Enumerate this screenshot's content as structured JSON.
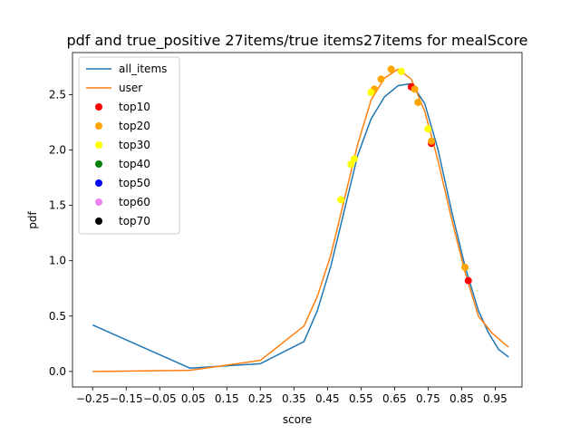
{
  "chart_data": {
    "type": "line",
    "title": "pdf and true_positive 27items/true items27items for mealScore",
    "xlabel": "score",
    "ylabel": "pdf",
    "xlim": [
      -0.31,
      1.03
    ],
    "ylim": [
      -0.14,
      2.88
    ],
    "grid": false,
    "legend_position": "top-left",
    "x_ticks": [
      -0.25,
      -0.15,
      -0.05,
      0.05,
      0.15,
      0.25,
      0.35,
      0.45,
      0.55,
      0.65,
      0.75,
      0.85,
      0.95
    ],
    "x_tick_labels": [
      "−0.25",
      "−0.15",
      "−0.05",
      "0.05",
      "0.15",
      "0.25",
      "0.35",
      "0.45",
      "0.55",
      "0.65",
      "0.75",
      "0.85",
      "0.95"
    ],
    "y_ticks": [
      0.0,
      0.5,
      1.0,
      1.5,
      2.0,
      2.5
    ],
    "y_tick_labels": [
      "0.0",
      "0.5",
      "1.0",
      "1.5",
      "2.0",
      "2.5"
    ],
    "series": [
      {
        "name": "all_items",
        "kind": "line",
        "color": "#1f77b4",
        "points": [
          [
            -0.25,
            0.42
          ],
          [
            0.04,
            0.03
          ],
          [
            0.25,
            0.07
          ],
          [
            0.38,
            0.27
          ],
          [
            0.42,
            0.55
          ],
          [
            0.46,
            0.95
          ],
          [
            0.5,
            1.45
          ],
          [
            0.54,
            1.95
          ],
          [
            0.58,
            2.28
          ],
          [
            0.62,
            2.48
          ],
          [
            0.66,
            2.58
          ],
          [
            0.7,
            2.6
          ],
          [
            0.74,
            2.42
          ],
          [
            0.78,
            2.0
          ],
          [
            0.82,
            1.45
          ],
          [
            0.86,
            0.95
          ],
          [
            0.9,
            0.55
          ],
          [
            0.93,
            0.35
          ],
          [
            0.96,
            0.2
          ],
          [
            0.99,
            0.13
          ]
        ]
      },
      {
        "name": "user",
        "kind": "line",
        "color": "#ff7f0e",
        "points": [
          [
            -0.25,
            0.0
          ],
          [
            0.04,
            0.01
          ],
          [
            0.18,
            0.07
          ],
          [
            0.25,
            0.1
          ],
          [
            0.38,
            0.41
          ],
          [
            0.42,
            0.68
          ],
          [
            0.46,
            1.05
          ],
          [
            0.5,
            1.55
          ],
          [
            0.54,
            2.05
          ],
          [
            0.58,
            2.45
          ],
          [
            0.62,
            2.65
          ],
          [
            0.66,
            2.73
          ],
          [
            0.7,
            2.64
          ],
          [
            0.74,
            2.35
          ],
          [
            0.78,
            1.9
          ],
          [
            0.82,
            1.38
          ],
          [
            0.86,
            0.9
          ],
          [
            0.9,
            0.5
          ],
          [
            0.94,
            0.35
          ],
          [
            0.97,
            0.27
          ],
          [
            0.99,
            0.22
          ]
        ]
      },
      {
        "name": "top10",
        "kind": "scatter",
        "color": "#ff0000",
        "points": [
          [
            0.7,
            2.57
          ],
          [
            0.76,
            2.06
          ],
          [
            0.87,
            0.82
          ]
        ]
      },
      {
        "name": "top20",
        "kind": "scatter",
        "color": "#ffa500",
        "points": [
          [
            0.59,
            2.55
          ],
          [
            0.61,
            2.64
          ],
          [
            0.64,
            2.73
          ],
          [
            0.71,
            2.55
          ],
          [
            0.72,
            2.43
          ],
          [
            0.76,
            2.08
          ],
          [
            0.86,
            0.94
          ]
        ]
      },
      {
        "name": "top30",
        "kind": "scatter",
        "color": "#ffff00",
        "points": [
          [
            0.49,
            1.55
          ],
          [
            0.52,
            1.87
          ],
          [
            0.53,
            1.92
          ],
          [
            0.58,
            2.52
          ],
          [
            0.67,
            2.71
          ],
          [
            0.75,
            2.19
          ]
        ]
      },
      {
        "name": "top40",
        "kind": "scatter",
        "color": "#008000",
        "points": []
      },
      {
        "name": "top50",
        "kind": "scatter",
        "color": "#0000ff",
        "points": []
      },
      {
        "name": "top60",
        "kind": "scatter",
        "color": "#ee82ee",
        "points": []
      },
      {
        "name": "top70",
        "kind": "scatter",
        "color": "#000000",
        "points": []
      }
    ]
  }
}
